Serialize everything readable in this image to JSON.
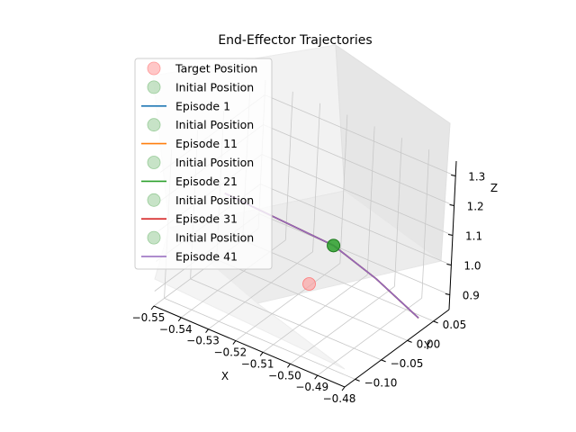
{
  "chart_data": {
    "type": "line",
    "projection": "3d",
    "title": "End-Effector Trajectories",
    "xlabel": "X",
    "ylabel": "Y",
    "zlabel": "Z",
    "xlim": [
      -0.55,
      -0.48
    ],
    "ylim": [
      -0.12,
      0.08
    ],
    "zlim": [
      0.85,
      1.35
    ],
    "xticks": [
      "−0.55",
      "−0.54",
      "−0.53",
      "−0.52",
      "−0.51",
      "−0.50",
      "−0.49",
      "−0.48"
    ],
    "yticks": [
      "−0.10",
      "−0.05",
      "0.00",
      "0.05"
    ],
    "zticks": [
      "0.9",
      "1.0",
      "1.1",
      "1.2",
      "1.3"
    ],
    "grid": true,
    "legend_position": "upper-left",
    "legend": [
      {
        "label": "Target Position",
        "kind": "marker",
        "color": "#ff9999"
      },
      {
        "label": "Initial Position",
        "kind": "marker",
        "color": "#99cc99"
      },
      {
        "label": "Episode 1",
        "kind": "line",
        "color": "#1f77b4"
      },
      {
        "label": "Initial Position",
        "kind": "marker",
        "color": "#99cc99"
      },
      {
        "label": "Episode 11",
        "kind": "line",
        "color": "#ff7f0e"
      },
      {
        "label": "Initial Position",
        "kind": "marker",
        "color": "#99cc99"
      },
      {
        "label": "Episode 21",
        "kind": "line",
        "color": "#2ca02c"
      },
      {
        "label": "Initial Position",
        "kind": "marker",
        "color": "#99cc99"
      },
      {
        "label": "Episode 31",
        "kind": "line",
        "color": "#d62728"
      },
      {
        "label": "Initial Position",
        "kind": "marker",
        "color": "#99cc99"
      },
      {
        "label": "Episode 41",
        "kind": "line",
        "color": "#9467bd"
      }
    ],
    "target_position": {
      "x": -0.5,
      "y": -0.09,
      "z": 1.08
    },
    "initial_position": {
      "x": -0.51,
      "y": 0.01,
      "z": 1.04
    },
    "series": [
      {
        "name": "Episode 1",
        "color": "#1f77b4",
        "points": [
          [
            -0.55,
            0.01,
            1.06
          ],
          [
            -0.53,
            0.01,
            1.05
          ],
          [
            -0.51,
            0.01,
            1.04
          ],
          [
            -0.495,
            0.015,
            0.98
          ],
          [
            -0.48,
            0.02,
            0.9
          ]
        ]
      },
      {
        "name": "Episode 11",
        "color": "#ff7f0e",
        "points": [
          [
            -0.55,
            0.01,
            1.06
          ],
          [
            -0.53,
            0.01,
            1.05
          ],
          [
            -0.51,
            0.01,
            1.04
          ],
          [
            -0.495,
            0.015,
            0.98
          ],
          [
            -0.48,
            0.02,
            0.9
          ]
        ]
      },
      {
        "name": "Episode 21",
        "color": "#2ca02c",
        "points": [
          [
            -0.55,
            0.01,
            1.06
          ],
          [
            -0.53,
            0.01,
            1.05
          ],
          [
            -0.51,
            0.01,
            1.04
          ],
          [
            -0.495,
            0.015,
            0.98
          ],
          [
            -0.48,
            0.02,
            0.9
          ]
        ]
      },
      {
        "name": "Episode 31",
        "color": "#d62728",
        "points": [
          [
            -0.55,
            0.01,
            1.06
          ],
          [
            -0.53,
            0.01,
            1.05
          ],
          [
            -0.51,
            0.01,
            1.04
          ],
          [
            -0.495,
            0.015,
            0.98
          ],
          [
            -0.48,
            0.02,
            0.9
          ]
        ]
      },
      {
        "name": "Episode 41",
        "color": "#9467bd",
        "points": [
          [
            -0.55,
            0.01,
            1.06
          ],
          [
            -0.53,
            0.01,
            1.05
          ],
          [
            -0.51,
            0.01,
            1.04
          ],
          [
            -0.495,
            0.015,
            0.98
          ],
          [
            -0.48,
            0.02,
            0.9
          ]
        ]
      }
    ]
  }
}
